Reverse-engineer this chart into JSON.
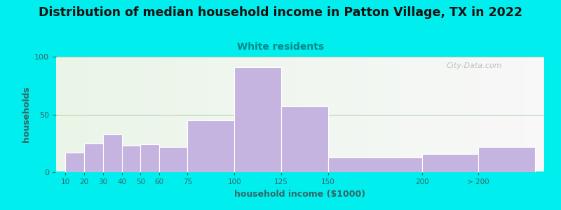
{
  "title": "Distribution of median household income in Patton Village, TX in 2022",
  "subtitle": "White residents",
  "xlabel": "household income ($1000)",
  "ylabel": "households",
  "background_outer": "#00EEEE",
  "bar_color": "#c5b3e0",
  "bar_edgecolor": "#ffffff",
  "title_fontsize": 12.5,
  "subtitle_fontsize": 10,
  "subtitle_color": "#008888",
  "ylabel_color": "#336666",
  "xlabel_color": "#336666",
  "tick_color": "#336666",
  "grid_color": "#aaccaa",
  "categories": [
    "10",
    "20",
    "30",
    "40",
    "50",
    "60",
    "75",
    "100",
    "125",
    "150",
    "200",
    "> 200"
  ],
  "values": [
    17,
    25,
    33,
    23,
    24,
    22,
    45,
    91,
    57,
    13,
    16,
    22
  ],
  "ylim": [
    0,
    100
  ],
  "yticks": [
    0,
    50,
    100
  ],
  "watermark": "City-Data.com"
}
